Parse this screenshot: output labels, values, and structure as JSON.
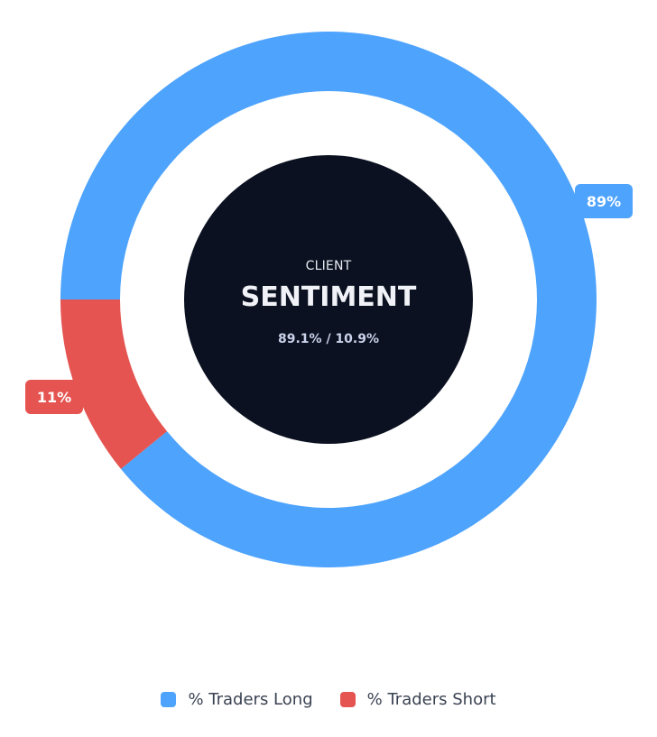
{
  "chart_data": {
    "type": "pie",
    "subtype": "donut",
    "series": [
      {
        "name": "% Traders Long",
        "value": 89.1,
        "label": "89%",
        "color": "#4ea3fd"
      },
      {
        "name": "% Traders Short",
        "value": 10.9,
        "label": "11%",
        "color": "#e55451"
      }
    ],
    "center": {
      "eyebrow": "CLIENT",
      "title": "SENTIMENT",
      "subtitle": "89.1% / 10.9%",
      "background": "#0b1120"
    },
    "legend_position": "bottom-center"
  },
  "legend": {
    "items": [
      {
        "label": "% Traders Long",
        "color": "#4ea3fd"
      },
      {
        "label": "% Traders Short",
        "color": "#e55451"
      }
    ]
  }
}
